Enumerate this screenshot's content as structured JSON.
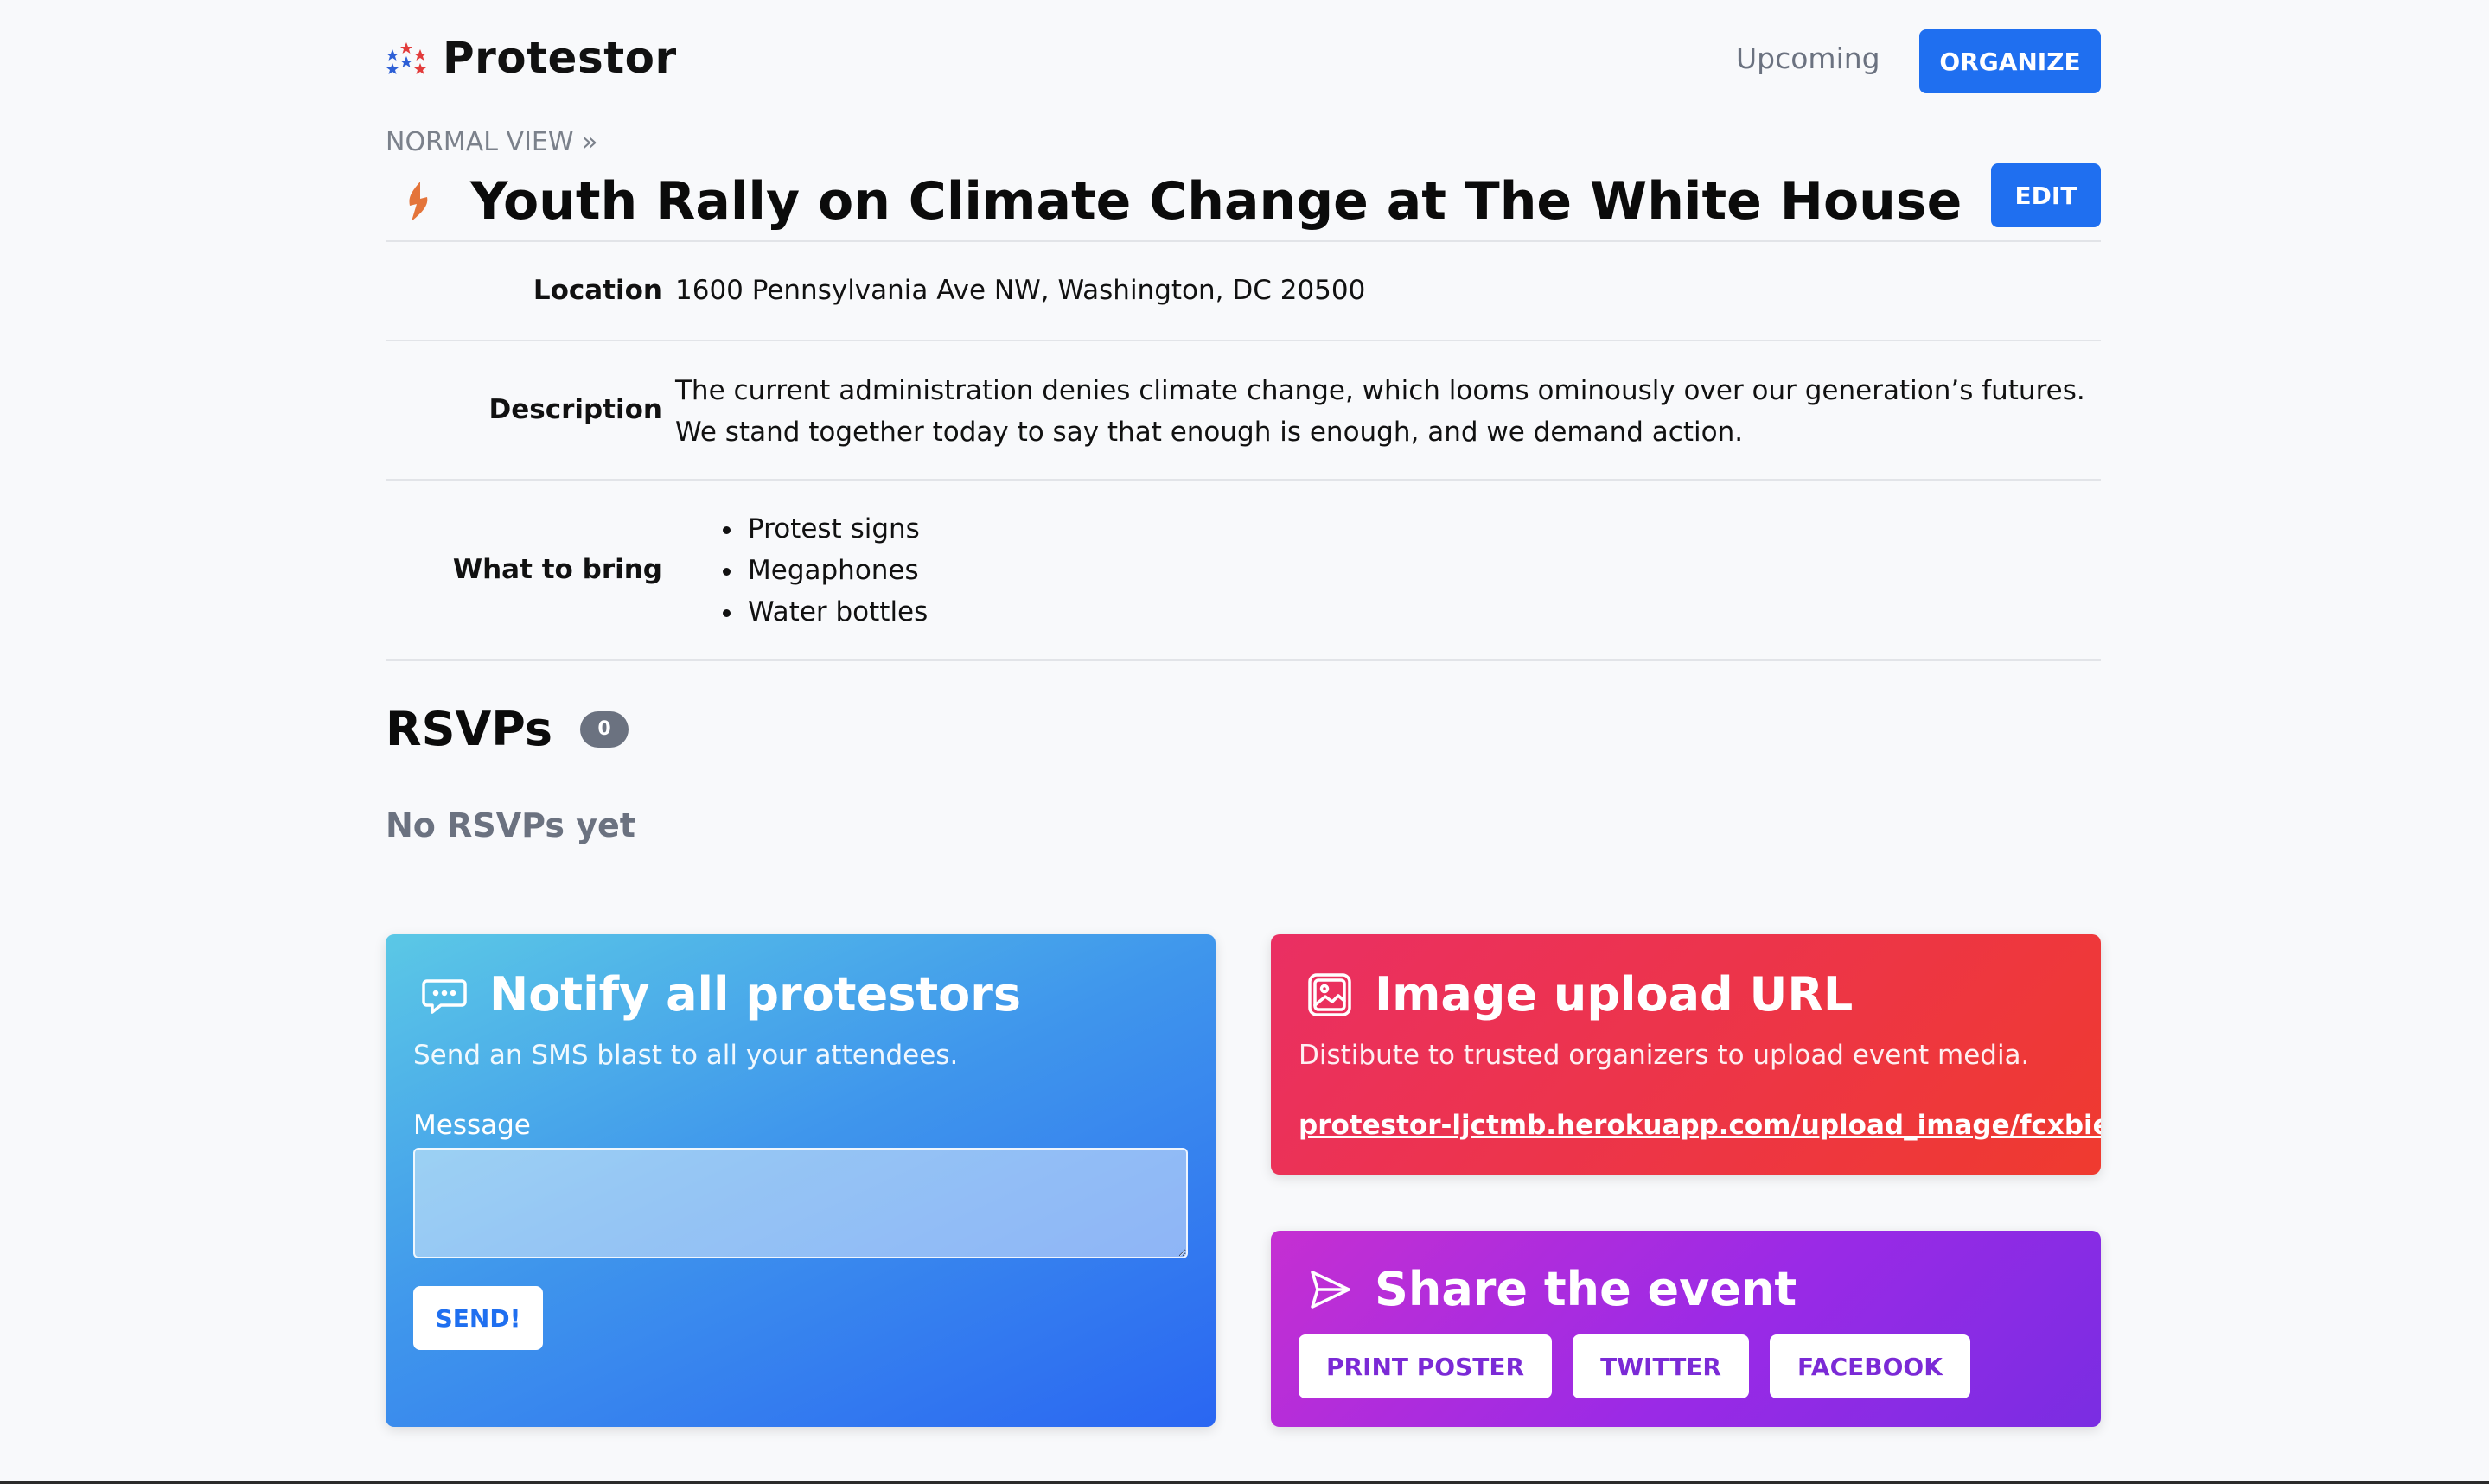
{
  "header": {
    "brand_name": "Protestor",
    "nav_upcoming": "Upcoming",
    "organize_label": "ORGANIZE"
  },
  "event": {
    "breadcrumb": "NORMAL VIEW »",
    "title": "Youth Rally on Climate Change at The White House",
    "edit_label": "EDIT",
    "location_label": "Location",
    "location": "1600 Pennsylvania Ave NW, Washington, DC 20500",
    "description_label": "Description",
    "description": "The current administration denies climate change, which looms ominously over our generation’s futures. We stand together today to say that enough is enough, and we demand action.",
    "bring_label": "What to bring",
    "bring_items": [
      "Protest signs",
      "Megaphones",
      "Water bottles"
    ]
  },
  "rsvps": {
    "title": "RSVPs",
    "count": "0",
    "empty_text": "No RSVPs yet"
  },
  "notify_card": {
    "icon": "chat-bubble-icon",
    "title": "Notify all protestors",
    "subtitle": "Send an SMS blast to all your attendees.",
    "message_label": "Message",
    "message_value": "",
    "send_label": "SEND!"
  },
  "upload_card": {
    "icon": "image-icon",
    "title": "Image upload URL",
    "subtitle": "Distibute to trusted organizers to upload event media.",
    "url": "protestor-ljctmb.herokuapp.com/upload_image/fcxbieot"
  },
  "share_card": {
    "icon": "send-arrow-icon",
    "title": "Share the event",
    "buttons": [
      "PRINT POSTER",
      "TWITTER",
      "FACEBOOK"
    ]
  },
  "colors": {
    "primary_blue": "#1f6ff0",
    "notify_gradient": [
      "#5bc8e6",
      "#2a66f2"
    ],
    "upload_gradient": [
      "#ea2f63",
      "#ef3a2f"
    ],
    "share_gradient": [
      "#c52fd2",
      "#7a2de2"
    ],
    "fire_orange": "#e4743a"
  }
}
